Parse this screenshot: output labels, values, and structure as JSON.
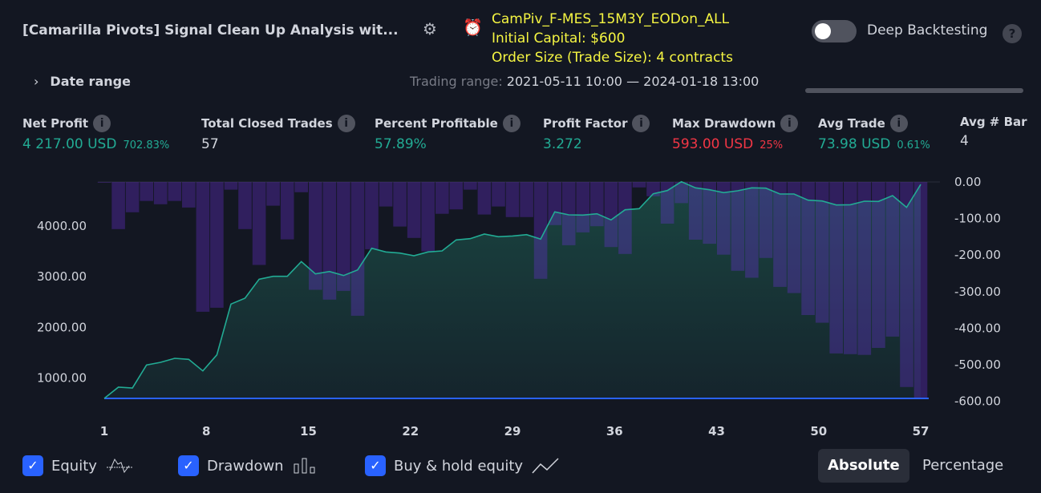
{
  "header": {
    "title": "[Camarilla Pivots] Signal Clean Up Analysis wit...",
    "info_lines": [
      "CamPiv_F-MES_15M3Y_EODon_ALL",
      "Initial Capital: $600",
      "Order Size (Trade Size): 4 contracts"
    ],
    "deep_backtesting_label": "Deep Backtesting",
    "deep_backtesting_on": false,
    "help": "?",
    "date_range_label": "Date range",
    "trading_range_label": "Trading range:",
    "trading_range_value": "2021-05-11 10:00 — 2024-01-18 13:00"
  },
  "stats": [
    {
      "label": "Net Profit",
      "value": "4 217.00 USD",
      "sub": "702.83%",
      "color": "green"
    },
    {
      "label": "Total Closed Trades",
      "value": "57",
      "sub": "",
      "color": "white"
    },
    {
      "label": "Percent Profitable",
      "value": "57.89%",
      "sub": "",
      "color": "green"
    },
    {
      "label": "Profit Factor",
      "value": "3.272",
      "sub": "",
      "color": "green"
    },
    {
      "label": "Max Drawdown",
      "value": "593.00 USD",
      "sub": "25%",
      "color": "red"
    },
    {
      "label": "Avg Trade",
      "value": "73.98 USD",
      "sub": "0.61%",
      "color": "green"
    },
    {
      "label": "Avg # Bar",
      "value": "4",
      "sub": "",
      "color": "white"
    }
  ],
  "chart_data": {
    "type": "line",
    "x_ticks": [
      "1",
      "8",
      "15",
      "22",
      "29",
      "36",
      "43",
      "50",
      "57"
    ],
    "left_axis_ticks": [
      "4000.00",
      "3000.00",
      "2000.00",
      "1000.00"
    ],
    "right_axis_ticks": [
      "0.00",
      "-100.00",
      "-200.00",
      "-300.00",
      "-400.00",
      "-500.00",
      "-600.00"
    ],
    "left_range": [
      600,
      4870
    ],
    "right_range": [
      -600,
      0
    ],
    "series": [
      {
        "name": "Equity",
        "color": "#22ab94",
        "values": [
          600,
          821,
          805,
          1258,
          1311,
          1390,
          1369,
          1142,
          1458,
          2459,
          2575,
          2949,
          3006,
          3006,
          3297,
          3053,
          3101,
          3022,
          3132,
          3559,
          3486,
          3464,
          3412,
          3486,
          3507,
          3723,
          3749,
          3839,
          3786,
          3800,
          3828,
          3739,
          4276,
          4218,
          4213,
          4239,
          4118,
          4317,
          4339,
          4633,
          4697,
          4870,
          4750,
          4712,
          4655,
          4691,
          4750,
          4744,
          4628,
          4628,
          4507,
          4491,
          4412,
          4417,
          4486,
          4481,
          4597,
          4365,
          4817
        ]
      },
      {
        "name": "Drawdown",
        "color": "#5b2fa8",
        "values": [
          0,
          -129,
          -83,
          -52,
          -61,
          -52,
          -70,
          -355,
          -344,
          -21,
          -129,
          -227,
          -65,
          -157,
          -28,
          -295,
          -322,
          -298,
          -366,
          -184,
          -67,
          -122,
          -153,
          -190,
          -87,
          -75,
          -21,
          -89,
          -67,
          -96,
          -96,
          -265,
          -118,
          -173,
          -138,
          -121,
          -178,
          -197,
          -15,
          -39,
          -114,
          -58,
          -158,
          -169,
          -199,
          -243,
          -262,
          -208,
          -287,
          -304,
          -364,
          -385,
          -469,
          -471,
          -473,
          -454,
          -423,
          -561,
          -593
        ]
      },
      {
        "name": "Buy & hold equity",
        "color": "#2962ff",
        "values": [
          600,
          600
        ]
      }
    ]
  },
  "legend": [
    {
      "label": "Equity",
      "checked": true
    },
    {
      "label": "Drawdown",
      "checked": true
    },
    {
      "label": "Buy & hold equity",
      "checked": true
    }
  ],
  "modes": {
    "absolute": "Absolute",
    "percentage": "Percentage",
    "active": "absolute"
  }
}
